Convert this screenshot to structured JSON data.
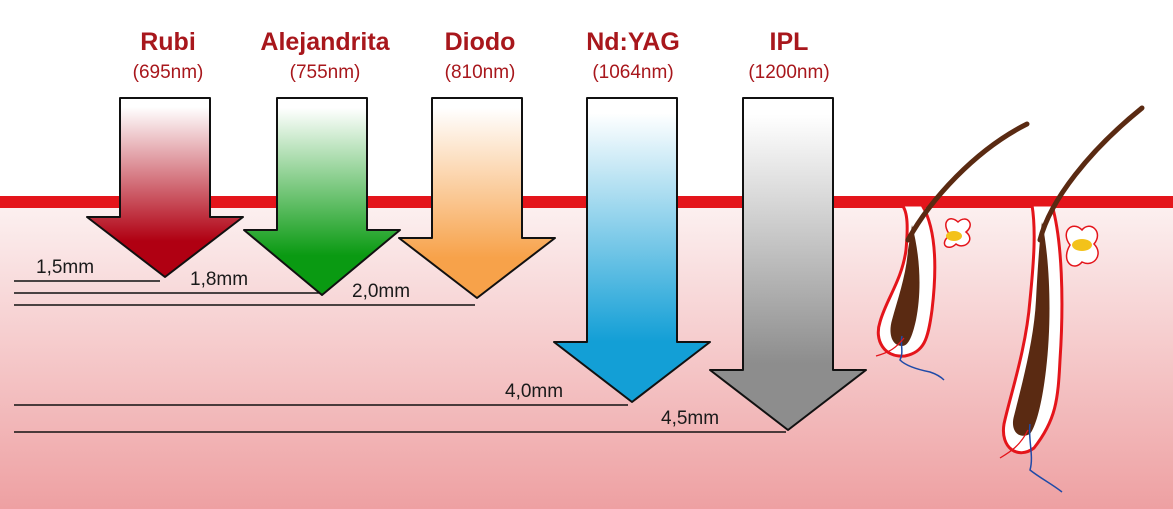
{
  "colors": {
    "title": "#a8171c",
    "skin_surface": "#e4151b",
    "skin_top": "#fbeeee",
    "skin_bottom": "#eea1a3"
  },
  "lasers": [
    {
      "name": "Rubi",
      "wavelength": "(695nm)",
      "depth": "1,5mm",
      "depth_mm": 1.5,
      "color": "#b00012"
    },
    {
      "name": "Alejandrita",
      "wavelength": "(755nm)",
      "depth": "1,8mm",
      "depth_mm": 1.8,
      "color": "#0a9a12"
    },
    {
      "name": "Diodo",
      "wavelength": "(810nm)",
      "depth": "2,0mm",
      "depth_mm": 2.0,
      "color": "#f7a24a"
    },
    {
      "name": "Nd:YAG",
      "wavelength": "(1064nm)",
      "depth": "4,0mm",
      "depth_mm": 4.0,
      "color": "#139fd6"
    },
    {
      "name": "IPL",
      "wavelength": "(1200nm)",
      "depth": "4,5mm",
      "depth_mm": 4.5,
      "color": "#8d8d8d"
    }
  ],
  "illustration": {
    "icon": "hair-follicle-icon",
    "count": 2
  }
}
